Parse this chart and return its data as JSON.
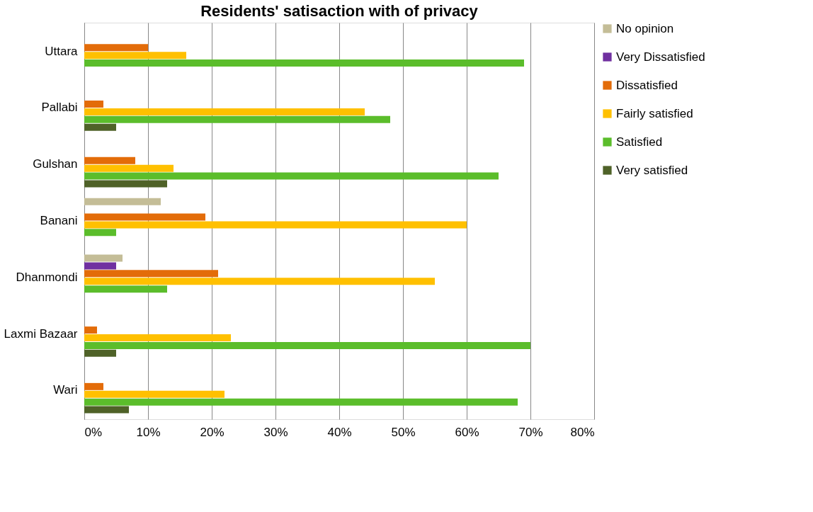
{
  "chart_data": {
    "type": "bar",
    "orientation": "horizontal",
    "title": "Residents' satisaction with of privacy",
    "categories": [
      "Uttara",
      "Pallabi",
      "Gulshan",
      "Banani",
      "Dhanmondi",
      "Laxmi Bazaar",
      "Wari"
    ],
    "series": [
      {
        "name": "No opinion",
        "color": "#c4bd97",
        "values": [
          null,
          null,
          null,
          12,
          6,
          null,
          null
        ]
      },
      {
        "name": "Very Dissatisfied",
        "color": "#7030a0",
        "values": [
          null,
          null,
          null,
          null,
          5,
          null,
          null
        ]
      },
      {
        "name": "Dissatisfied",
        "color": "#e36c09",
        "values": [
          10,
          3,
          8,
          19,
          21,
          2,
          3
        ]
      },
      {
        "name": "Fairly satisfied",
        "color": "#ffc000",
        "values": [
          16,
          44,
          14,
          60,
          55,
          23,
          22
        ]
      },
      {
        "name": "Satisfied",
        "color": "#5bbd2b",
        "values": [
          69,
          48,
          65,
          5,
          13,
          70,
          68
        ]
      },
      {
        "name": "Very satisfied",
        "color": "#4f6228",
        "values": [
          null,
          5,
          13,
          null,
          null,
          5,
          7
        ]
      }
    ],
    "xlim": [
      0,
      80
    ],
    "xticks": [
      {
        "value": 0,
        "label": "0%"
      },
      {
        "value": 10,
        "label": "10%"
      },
      {
        "value": 20,
        "label": "20%"
      },
      {
        "value": 30,
        "label": "30%"
      },
      {
        "value": 40,
        "label": "40%"
      },
      {
        "value": 50,
        "label": "50%"
      },
      {
        "value": 60,
        "label": "60%"
      },
      {
        "value": 70,
        "label": "70%"
      },
      {
        "value": 80,
        "label": "80%"
      }
    ],
    "grid": "x",
    "legend": "right"
  }
}
